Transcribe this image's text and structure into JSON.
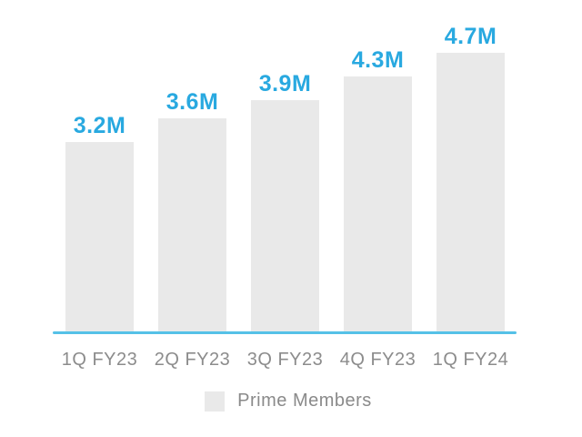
{
  "chart_data": {
    "type": "bar",
    "categories": [
      "1Q FY23",
      "2Q FY23",
      "3Q FY23",
      "4Q FY23",
      "1Q FY24"
    ],
    "values": [
      3.2,
      3.6,
      3.9,
      4.3,
      4.7
    ],
    "value_labels": [
      "3.2M",
      "3.6M",
      "3.9M",
      "4.3M",
      "4.7M"
    ],
    "unit": "millions",
    "title": "",
    "xlabel": "",
    "ylabel": "",
    "ylim": [
      0,
      5
    ],
    "grid": false,
    "legend": {
      "position": "bottom",
      "entries": [
        "Prime Members"
      ]
    },
    "colors": {
      "bar_fill": "#E9E9E9",
      "value_label": "#29A9E0",
      "axis_line": "#55C1E7",
      "category_label": "#8C8C8C",
      "legend_text": "#8A8A8A"
    }
  }
}
